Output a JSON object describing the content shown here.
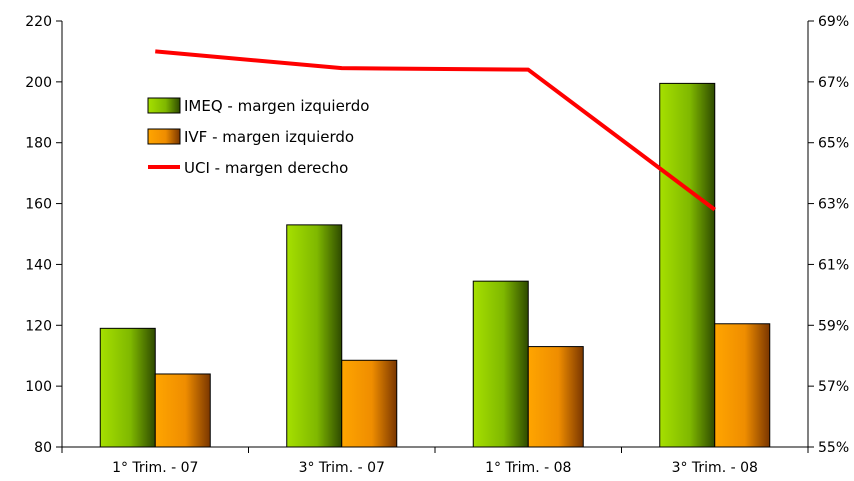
{
  "chart_data": {
    "type": "bar",
    "categories": [
      "1° Trim. - 07",
      "3° Trim. - 07",
      "1° Trim. - 08",
      "3° Trim. - 08"
    ],
    "series": [
      {
        "name": "IMEQ - margen izquierdo",
        "kind": "bar",
        "axis": "left",
        "values": [
          119,
          153,
          134.5,
          199.5
        ],
        "color": "#8fc400"
      },
      {
        "name": "IVF - margen izquierdo",
        "kind": "bar",
        "axis": "left",
        "values": [
          104,
          108.5,
          113,
          120.5
        ],
        "color": "#ff9900"
      },
      {
        "name": "UCI - margen derecho",
        "kind": "line",
        "axis": "right",
        "values": [
          68.0,
          67.45,
          67.4,
          62.8
        ],
        "color": "#ff0000"
      }
    ],
    "y_left": {
      "min": 80,
      "max": 220,
      "ticks": [
        80,
        100,
        120,
        140,
        160,
        180,
        200,
        220
      ]
    },
    "y_right": {
      "min": 55,
      "max": 69,
      "ticks": [
        "55%",
        "57%",
        "59%",
        "61%",
        "63%",
        "65%",
        "67%",
        "69%"
      ]
    },
    "title": "",
    "xlabel": "",
    "ylabel": "",
    "grid": false,
    "legend": "top-left inside plot"
  }
}
